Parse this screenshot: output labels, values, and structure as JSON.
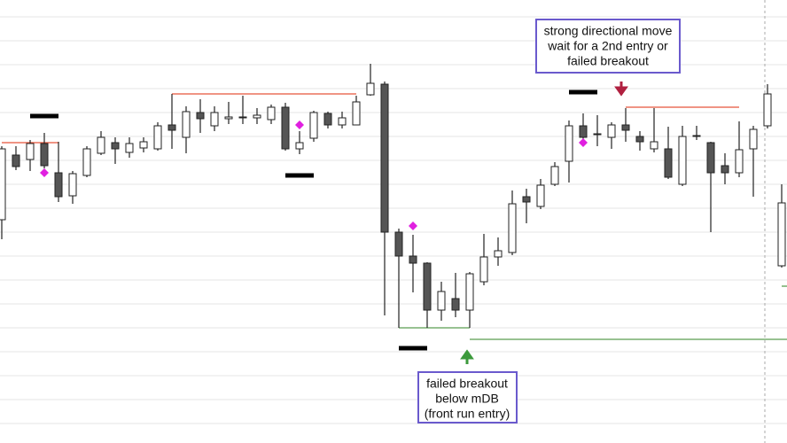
{
  "chart_data": {
    "type": "candlestick",
    "categories": [
      null,
      null,
      null,
      null,
      null,
      null,
      null,
      null,
      null,
      null,
      null,
      null,
      null,
      null,
      null,
      null,
      null,
      null,
      null,
      null,
      null,
      null,
      null,
      null,
      null,
      null,
      null,
      null,
      null,
      null,
      null,
      null,
      null,
      null,
      null,
      null,
      null,
      null,
      null,
      null,
      null,
      null,
      null,
      null,
      null,
      null,
      null,
      null,
      null,
      null,
      null,
      null,
      null,
      null,
      null,
      null
    ],
    "open": [
      252,
      325,
      320,
      338,
      305,
      279,
      302,
      327,
      339,
      328,
      333,
      332,
      359,
      345,
      373,
      358,
      366,
      367,
      367,
      365,
      379,
      332,
      344,
      372,
      359,
      359,
      393,
      405,
      238,
      211,
      203,
      150,
      163,
      150,
      182,
      210,
      215,
      278,
      267,
      292,
      318,
      358,
      348,
      345,
      359,
      346,
      332,
      332,
      292,
      346,
      339,
      313,
      305,
      332,
      358,
      200
    ],
    "high": [
      335,
      335,
      342,
      350,
      340,
      307,
      335,
      352,
      345,
      345,
      345,
      362,
      394,
      380,
      388,
      380,
      385,
      392,
      378,
      382,
      384,
      352,
      375,
      374,
      374,
      392,
      428,
      408,
      242,
      235,
      204,
      182,
      192,
      193,
      236,
      232,
      285,
      287,
      298,
      317,
      364,
      372,
      370,
      362,
      378,
      352,
      378,
      357,
      358,
      358,
      340,
      327,
      363,
      358,
      405,
      292
    ],
    "low": [
      230,
      308,
      307,
      310,
      272,
      270,
      300,
      325,
      315,
      322,
      328,
      330,
      332,
      327,
      350,
      352,
      360,
      360,
      360,
      360,
      330,
      326,
      340,
      355,
      355,
      359,
      392,
      144,
      130,
      170,
      130,
      138,
      142,
      130,
      178,
      200,
      212,
      248,
      264,
      290,
      294,
      338,
      335,
      332,
      340,
      330,
      328,
      298,
      290,
      342,
      238,
      292,
      300,
      278,
      355,
      198
    ],
    "close": [
      332,
      312,
      338,
      313,
      278,
      304,
      332,
      345,
      332,
      338,
      340,
      358,
      353,
      374,
      366,
      373,
      368,
      368,
      370,
      379,
      332,
      339,
      373,
      359,
      367,
      385,
      406,
      238,
      211,
      203,
      150,
      171,
      150,
      191,
      210,
      217,
      270,
      272,
      291,
      312,
      358,
      345,
      349,
      359,
      353,
      340,
      340,
      300,
      346,
      347,
      305,
      305,
      331,
      354,
      394,
      271
    ],
    "up_color": "#ffffff",
    "down_color": "#555555",
    "ylim": [
      0,
      500
    ],
    "yticks": [
      481,
      454,
      427,
      400,
      373,
      346,
      319,
      292,
      265,
      238,
      211,
      184,
      157,
      130,
      103,
      76,
      49,
      22
    ],
    "grid": true,
    "levels": [
      {
        "color": "#e8553a",
        "value": 339,
        "start": 0,
        "end": 4
      },
      {
        "color": "#e8553a",
        "value": 394,
        "start": 12,
        "end": 25
      },
      {
        "color": "#e8553a",
        "value": 379,
        "start": 44,
        "end": 52
      },
      {
        "color": "#5a9e50",
        "value": 130,
        "start": 28,
        "end": 33
      },
      {
        "color": "#5a9e50",
        "value": 117,
        "start": 33,
        "end": 56
      },
      {
        "color": "#5a9e50",
        "value": 177,
        "start": 55,
        "end": 56
      }
    ],
    "dashes": {
      "color": "#000000",
      "points": [
        {
          "index": 3,
          "value": 369
        },
        {
          "index": 21,
          "value": 302
        },
        {
          "index": 29,
          "value": 107
        },
        {
          "index": 41,
          "value": 396
        }
      ]
    },
    "diamonds": {
      "color": "#e020e0",
      "points": [
        {
          "index": 3,
          "value": 305
        },
        {
          "index": 21,
          "value": 359
        },
        {
          "index": 29,
          "value": 245
        },
        {
          "index": 41,
          "value": 339
        }
      ]
    },
    "annotations": [
      {
        "lines": [
          "strong directional move",
          "wait for a 2nd entry or",
          "failed breakout"
        ]
      },
      {
        "lines": [
          "failed breakout",
          "below mDB",
          "(front run entry)"
        ]
      }
    ]
  }
}
